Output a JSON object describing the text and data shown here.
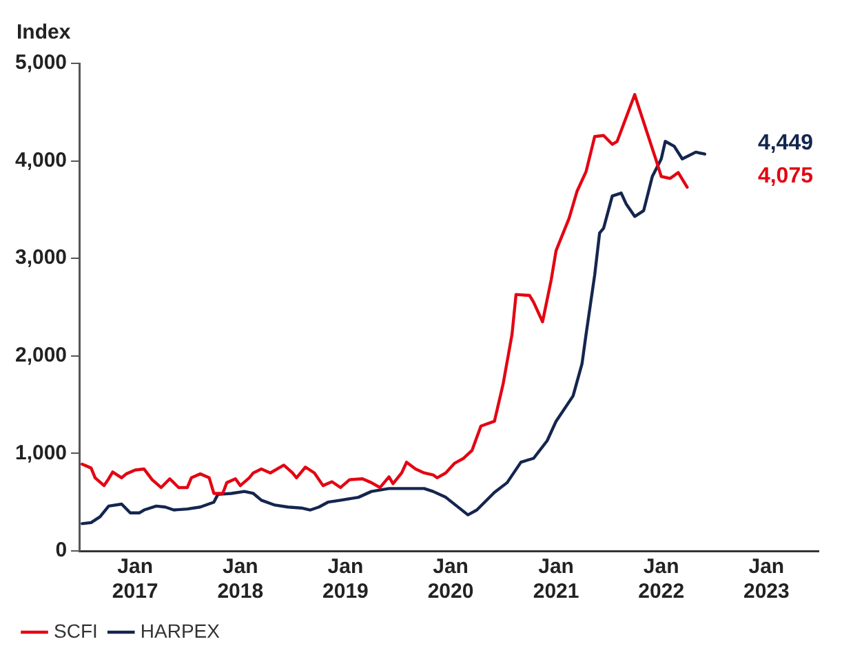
{
  "chart_data": {
    "type": "line",
    "ylabel": "Index",
    "xlim": [
      "2016-06-21",
      "2023-07-01"
    ],
    "xticks": [
      {
        "value": "2017-01",
        "label": "Jan 2017"
      },
      {
        "value": "2018-01",
        "label": "Jan 2018"
      },
      {
        "value": "2019-01",
        "label": "Jan 2019"
      },
      {
        "value": "2020-01",
        "label": "Jan 2020"
      },
      {
        "value": "2021-01",
        "label": "Jan 2021"
      },
      {
        "value": "2022-01",
        "label": "Jan 2022"
      },
      {
        "value": "2023-01",
        "label": "Jan 2023"
      }
    ],
    "ylim": [
      0,
      5000
    ],
    "yticks": [
      0,
      {
        "value": 1000,
        "label": "1,000"
      },
      {
        "value": 2000,
        "label": "2,000"
      },
      {
        "value": 3000,
        "label": "3,000"
      },
      {
        "value": 4000,
        "label": "4,000"
      },
      {
        "value": 5000,
        "label": "5,000"
      }
    ],
    "grid": false,
    "legend": "bottom left",
    "marker": "none",
    "line_style": "solid",
    "series": [
      {
        "name": "SCFI",
        "color": "#e30613",
        "x": [
          "2016-07-01",
          "2016-08-01",
          "2016-08-15",
          "2016-09-15",
          "2016-10-01",
          "2016-10-15",
          "2016-11-15",
          "2016-12-01",
          "2017-01-01",
          "2017-02-01",
          "2017-03-01",
          "2017-04-01",
          "2017-05-01",
          "2017-06-01",
          "2017-07-01",
          "2017-07-15",
          "2017-08-15",
          "2017-09-15",
          "2017-10-01",
          "2017-11-01",
          "2017-11-15",
          "2017-12-15",
          "2018-01-01",
          "2018-02-01",
          "2018-02-15",
          "2018-03-15",
          "2018-04-15",
          "2018-06-01",
          "2018-07-01",
          "2018-07-15",
          "2018-08-15",
          "2018-09-15",
          "2018-10-15",
          "2018-11-15",
          "2018-12-15",
          "2019-01-15",
          "2019-03-01",
          "2019-04-01",
          "2019-05-01",
          "2019-06-01",
          "2019-06-15",
          "2019-07-15",
          "2019-08-01",
          "2019-09-01",
          "2019-10-01",
          "2019-11-01",
          "2019-11-15",
          "2019-12-15",
          "2020-01-15",
          "2020-02-15",
          "2020-03-15",
          "2020-04-15",
          "2020-06-01",
          "2020-07-01",
          "2020-08-01",
          "2020-08-15",
          "2020-10-01",
          "2020-10-15",
          "2020-11-15",
          "2020-12-15",
          "2021-01-01",
          "2021-02-15",
          "2021-03-15",
          "2021-04-15",
          "2021-05-15",
          "2021-06-15",
          "2021-07-15",
          "2021-08-01",
          "2021-10-01",
          "2021-10-15",
          "2021-12-15",
          "2022-01-01",
          "2022-02-01",
          "2022-03-01",
          "2022-04-01"
        ],
        "values": [
          890,
          850,
          750,
          670,
          740,
          810,
          750,
          790,
          830,
          840,
          730,
          650,
          740,
          650,
          650,
          750,
          790,
          750,
          590,
          590,
          700,
          740,
          670,
          750,
          800,
          840,
          800,
          880,
          800,
          750,
          860,
          800,
          670,
          710,
          650,
          730,
          740,
          700,
          650,
          760,
          690,
          800,
          910,
          840,
          800,
          780,
          750,
          800,
          900,
          950,
          1030,
          1280,
          1330,
          1710,
          2220,
          2630,
          2620,
          2550,
          2350,
          2780,
          3080,
          3410,
          3690,
          3890,
          4250,
          4260,
          4170,
          4200,
          4680,
          4550,
          4000,
          3840,
          3820,
          3880,
          3730
        ]
      },
      {
        "name": "HARPEX",
        "color": "#14264f",
        "x": [
          "2016-07-01",
          "2016-08-01",
          "2016-09-01",
          "2016-10-01",
          "2016-11-15",
          "2016-12-15",
          "2017-01-15",
          "2017-02-01",
          "2017-03-15",
          "2017-04-15",
          "2017-05-15",
          "2017-07-01",
          "2017-08-15",
          "2017-10-01",
          "2017-10-15",
          "2017-12-01",
          "2018-01-15",
          "2018-02-15",
          "2018-03-15",
          "2018-05-01",
          "2018-06-15",
          "2018-08-01",
          "2018-09-01",
          "2018-10-01",
          "2018-11-01",
          "2018-12-15",
          "2019-02-15",
          "2019-04-01",
          "2019-06-01",
          "2019-08-01",
          "2019-10-01",
          "2019-11-01",
          "2019-12-15",
          "2020-03-01",
          "2020-04-01",
          "2020-06-01",
          "2020-07-15",
          "2020-09-01",
          "2020-10-15",
          "2020-12-01",
          "2021-01-01",
          "2021-03-01",
          "2021-04-01",
          "2021-04-15",
          "2021-05-15",
          "2021-06-01",
          "2021-06-15",
          "2021-07-15",
          "2021-08-15",
          "2021-09-01",
          "2021-10-01",
          "2021-11-01",
          "2021-12-01",
          "2022-01-01",
          "2022-01-15",
          "2022-02-15",
          "2022-03-15",
          "2022-05-01",
          "2022-06-01"
        ],
        "values": [
          280,
          290,
          350,
          460,
          480,
          390,
          390,
          420,
          460,
          450,
          420,
          430,
          450,
          500,
          580,
          590,
          610,
          590,
          520,
          470,
          450,
          440,
          420,
          450,
          500,
          520,
          550,
          610,
          640,
          640,
          640,
          610,
          550,
          370,
          420,
          600,
          700,
          910,
          950,
          1130,
          1330,
          1590,
          1920,
          2220,
          2830,
          3260,
          3310,
          3640,
          3670,
          3560,
          3430,
          3490,
          3840,
          4020,
          4200,
          4150,
          4020,
          4090,
          4070
        ]
      }
    ],
    "annotations": [
      "4,449",
      "4,075"
    ]
  }
}
